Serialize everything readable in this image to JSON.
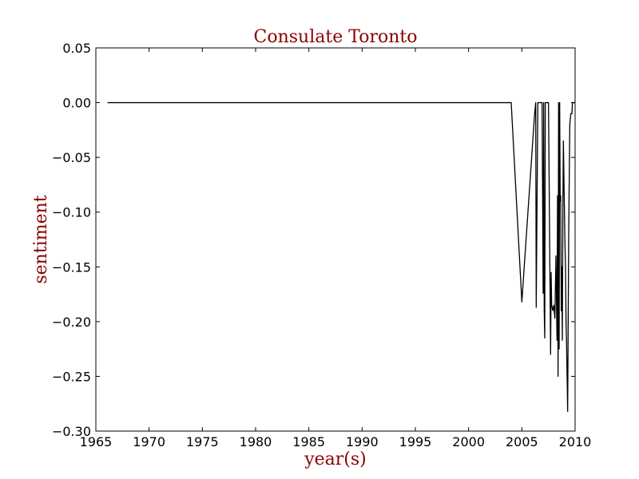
{
  "chart_data": {
    "type": "line",
    "title": "Consulate Toronto",
    "xlabel": "year(s)",
    "ylabel": "sentiment",
    "xlim": [
      1965,
      2010
    ],
    "ylim": [
      -0.3,
      0.05
    ],
    "xticks": [
      "1965",
      "1970",
      "1975",
      "1980",
      "1985",
      "1990",
      "1995",
      "2000",
      "2005",
      "2010"
    ],
    "yticks": [
      "0.05",
      "0.00",
      "−0.05",
      "−0.10",
      "−0.15",
      "−0.20",
      "−0.25",
      "−0.30"
    ],
    "grid": false,
    "colors": {
      "line": "#000000",
      "title": "#8b0000",
      "axis_label": "#8b0000"
    },
    "series": [
      {
        "x": [
          1966.1,
          2004.0,
          2005.0,
          2006.2,
          2006.3,
          2006.35,
          2006.5,
          2006.9,
          2007.0,
          2007.05,
          2007.1,
          2007.15,
          2007.2,
          2007.3,
          2007.4,
          2007.5,
          2007.7,
          2007.75,
          2007.8,
          2007.9,
          2008.0,
          2008.1,
          2008.2,
          2008.3,
          2008.35,
          2008.4,
          2008.45,
          2008.5,
          2008.55,
          2008.6,
          2008.65,
          2008.7,
          2008.75,
          2008.8,
          2008.85,
          2008.9,
          2009.0,
          2009.05,
          2009.1,
          2009.15,
          2009.2,
          2009.3,
          2009.4,
          2009.5,
          2009.6,
          2009.7,
          2009.75,
          2009.85,
          2009.95
        ],
        "y": [
          0.0,
          0.0,
          -0.182,
          -0.01,
          0.0,
          -0.187,
          0.0,
          0.0,
          -0.174,
          0.0,
          -0.19,
          -0.215,
          0.0,
          0.0,
          0.0,
          0.0,
          -0.23,
          -0.155,
          -0.185,
          -0.19,
          -0.185,
          -0.197,
          -0.14,
          -0.217,
          -0.085,
          -0.25,
          0.0,
          -0.225,
          0.0,
          -0.09,
          -0.085,
          -0.19,
          -0.15,
          -0.217,
          -0.1,
          -0.035,
          -0.1,
          -0.13,
          -0.15,
          -0.2,
          -0.22,
          -0.282,
          -0.12,
          -0.02,
          -0.01,
          -0.01,
          0.0,
          0.0,
          0.0
        ]
      }
    ]
  }
}
